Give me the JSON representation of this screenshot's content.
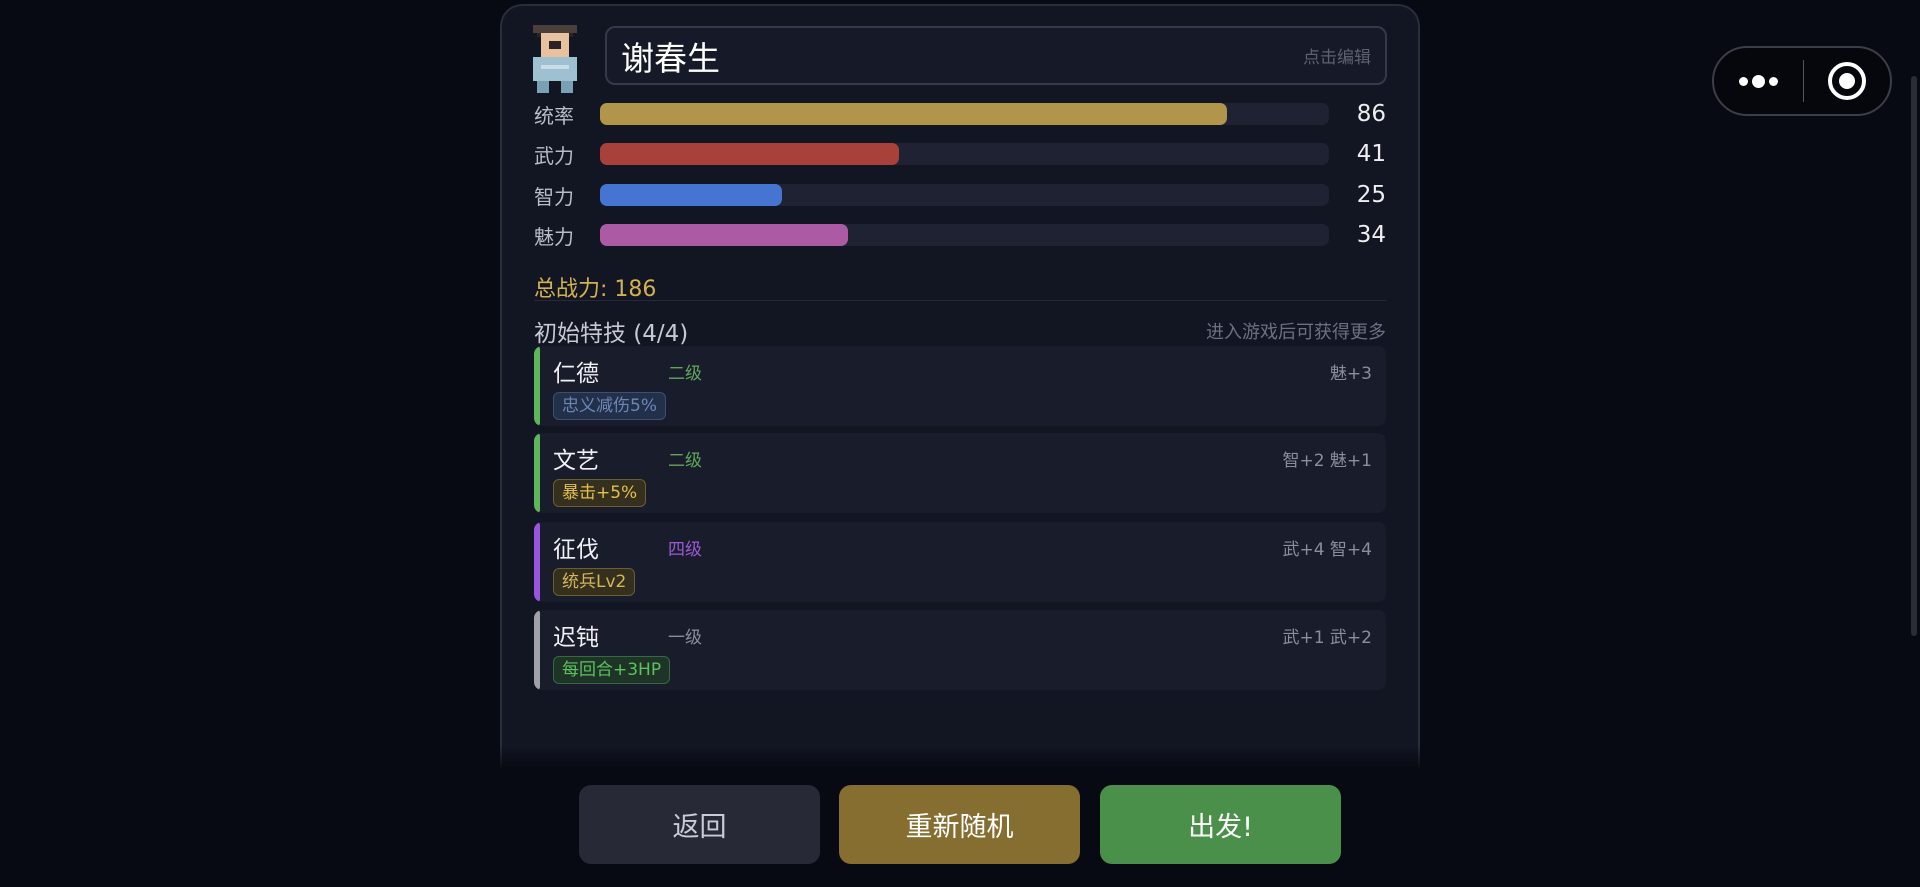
{
  "general": {
    "name": "谢春生",
    "name_hint": "点击编辑"
  },
  "stats": [
    {
      "label": "统率",
      "value": 86,
      "color": "#b0954a"
    },
    {
      "label": "武力",
      "value": 41,
      "color": "#a8413a"
    },
    {
      "label": "智力",
      "value": 25,
      "color": "#4674d2"
    },
    {
      "label": "魅力",
      "value": 34,
      "color": "#ad5aa5"
    }
  ],
  "stat_max": 100,
  "total": "总战力: 186",
  "skills_header": "初始特技 (4/4)",
  "skills_hint": "进入游戏后可获得更多",
  "skills": [
    {
      "name": "仁德",
      "level": "二级",
      "level_color": "#5fa85a",
      "bar_color": "#5fb55a",
      "bonus": "魅+3",
      "tag": "忠义减伤5%",
      "tag_color": "#6d86b8",
      "tag_bg": "#22304a",
      "tag_border": "#3c4f72"
    },
    {
      "name": "文艺",
      "level": "二级",
      "level_color": "#5fa85a",
      "bar_color": "#5fb55a",
      "bonus": "智+2 魅+1",
      "tag": "暴击+5%",
      "tag_color": "#e3c04e",
      "tag_bg": "#35301e",
      "tag_border": "#6b5e32"
    },
    {
      "name": "征伐",
      "level": "四级",
      "level_color": "#9a5ad6",
      "bar_color": "#9a55e0",
      "bonus": "武+4 智+4",
      "tag": "统兵Lv2",
      "tag_color": "#d5b45a",
      "tag_bg": "#35301e",
      "tag_border": "#6b5e32"
    },
    {
      "name": "迟钝",
      "level": "一级",
      "level_color": "#8a8e9c",
      "bar_color": "#a0a0a8",
      "bonus": "武+1 武+2",
      "tag": "每回合+3HP",
      "tag_color": "#5fc060",
      "tag_bg": "#1e3426",
      "tag_border": "#376a42"
    }
  ],
  "buttons": {
    "back": "返回",
    "reroll": "重新随机",
    "go": "出发!"
  }
}
